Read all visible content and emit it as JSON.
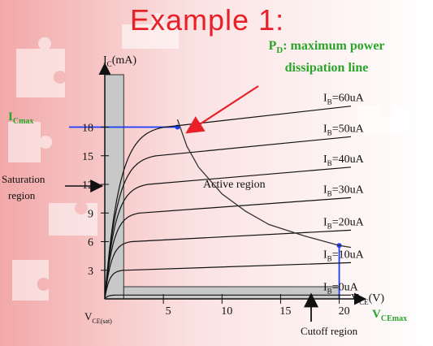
{
  "title": "Example 1:",
  "pd_label": {
    "main": "P",
    "sub": "D",
    "rest": ": maximum power",
    "line2": "dissipation line"
  },
  "chart_data": {
    "type": "line",
    "y_axis_label": {
      "main": "I",
      "sub": "C",
      "rest": "(mA)"
    },
    "x_axis_label": {
      "main": "V",
      "sub": "CE",
      "rest": "(V)"
    },
    "x_ticks": [
      5,
      10,
      15,
      20
    ],
    "y_ticks": [
      3,
      6,
      9,
      12,
      15,
      18
    ],
    "xlim": [
      0,
      21
    ],
    "ylim": [
      0,
      24
    ],
    "series": [
      {
        "name": "I_B=0uA",
        "label_main": "I",
        "label_sub": "B",
        "label_rest": "=0uA",
        "sat": 0.4,
        "end": 0.4
      },
      {
        "name": "I_B=10uA",
        "label_main": "I",
        "label_sub": "B",
        "label_rest": "=10uA",
        "sat": 3.0,
        "end": 3.8
      },
      {
        "name": "I_B=20uA",
        "label_main": "I",
        "label_sub": "B",
        "label_rest": "=20uA",
        "sat": 6.0,
        "end": 7.2
      },
      {
        "name": "I_B=30uA",
        "label_main": "I",
        "label_sub": "B",
        "label_rest": "=30uA",
        "sat": 9.0,
        "end": 10.6
      },
      {
        "name": "I_B=40uA",
        "label_main": "I",
        "label_sub": "B",
        "label_rest": "=40uA",
        "sat": 12.0,
        "end": 13.8
      },
      {
        "name": "I_B=50uA",
        "label_main": "I",
        "label_sub": "B",
        "label_rest": "=50uA",
        "sat": 15.0,
        "end": 17.0
      },
      {
        "name": "I_B=60uA",
        "label_main": "I",
        "label_sub": "B",
        "label_rest": "=60uA",
        "sat": 18.0,
        "end": 20.2
      }
    ],
    "pd_curve": [
      [
        6.2,
        18.8
      ],
      [
        7,
        16
      ],
      [
        8,
        13.8
      ],
      [
        10,
        11.0
      ],
      [
        12,
        9.2
      ],
      [
        14,
        7.8
      ],
      [
        17,
        6.6
      ],
      [
        20,
        5.6
      ],
      [
        21,
        5.4
      ]
    ],
    "icmax": {
      "main": "I",
      "sub": "Cmax",
      "value": 18,
      "at_x": 6.2
    },
    "vcemax": {
      "main": "V",
      "sub": "CEmax",
      "value": 20,
      "at_y": 5.6
    },
    "vce_sat": {
      "main": "V",
      "sub": "CE(sat)",
      "x": 1.2
    },
    "region_labels": {
      "active": "Active region",
      "saturation_line1": "Saturation",
      "saturation_line2": "region",
      "cutoff": "Cutoff region"
    },
    "colors": {
      "icmax": "#2aa52a",
      "vcemax": "#2aa52a",
      "guide": "#1a3cff",
      "arrow": "#e8202a",
      "shade": "#c8c8c8"
    }
  }
}
